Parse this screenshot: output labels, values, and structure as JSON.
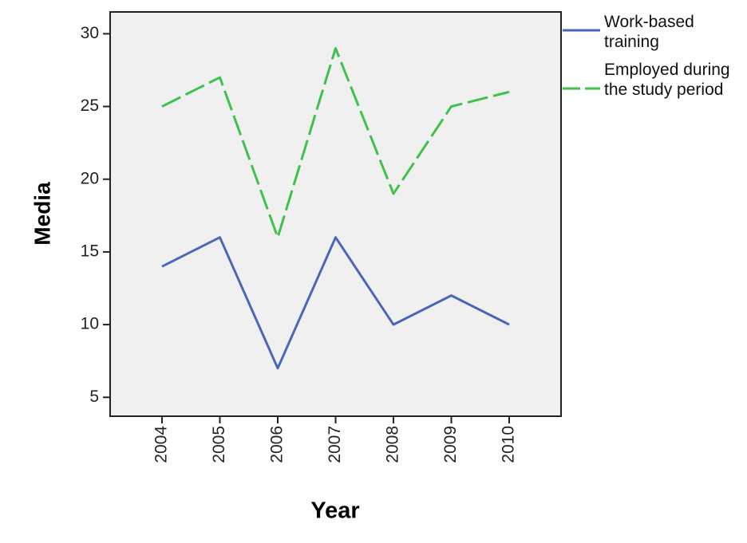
{
  "chart_data": {
    "type": "line",
    "x_label": "Year",
    "y_label": "Media",
    "categories": [
      "2004",
      "2005",
      "2006",
      "2007",
      "2008",
      "2009",
      "2010"
    ],
    "series": [
      {
        "name": "Work-based training",
        "color": "#4b66b7",
        "dashed": false,
        "values": [
          14,
          16,
          7,
          16,
          10,
          12,
          10
        ]
      },
      {
        "name": "Employed during the study period",
        "color": "#3ec24b",
        "dashed": true,
        "values": [
          25,
          27,
          16,
          29,
          19,
          25,
          26
        ]
      }
    ],
    "ylim": [
      3.7,
      31.5
    ],
    "yticks": [
      5,
      10,
      15,
      20,
      25,
      30
    ],
    "legend": "right"
  }
}
